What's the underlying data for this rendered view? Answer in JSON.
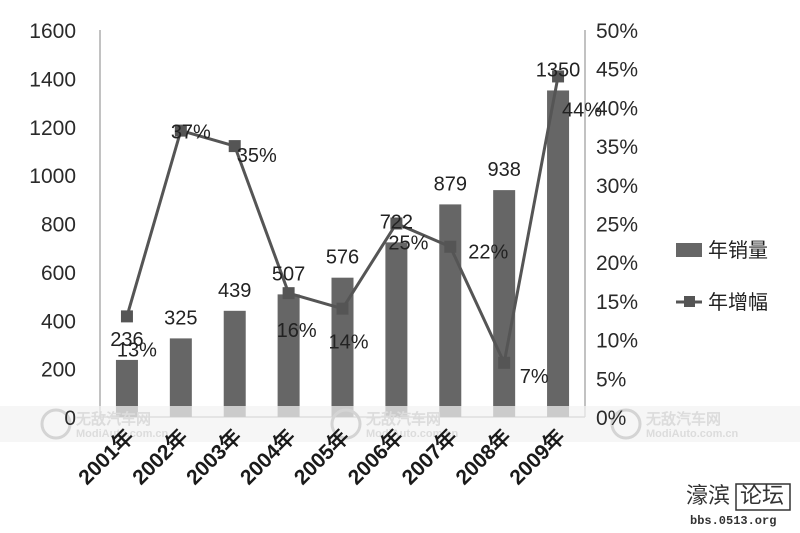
{
  "chart_data": {
    "type": "bar",
    "categories": [
      "2001年",
      "2002年",
      "2003年",
      "2004年",
      "2005年",
      "2006年",
      "2007年",
      "2008年",
      "2009年"
    ],
    "series": [
      {
        "name": "年销量",
        "type": "bar",
        "axis": "left",
        "values": [
          236,
          325,
          439,
          507,
          576,
          722,
          879,
          938,
          1350
        ]
      },
      {
        "name": "年增幅",
        "type": "line",
        "axis": "right",
        "values": [
          13,
          37,
          35,
          16,
          14,
          25,
          22,
          7,
          44
        ]
      }
    ],
    "bar_labels": [
      "236",
      "325",
      "439",
      "507",
      "576",
      "722",
      "879",
      "938",
      "1350"
    ],
    "line_labels": [
      "13%",
      "37%",
      "35%",
      "16%",
      "14%",
      "25%",
      "22%",
      "7%",
      "44%"
    ],
    "ylim": [
      0,
      1600
    ],
    "y_ticks": [
      "0",
      "200",
      "400",
      "600",
      "800",
      "1000",
      "1200",
      "1400",
      "1600"
    ],
    "y2lim": [
      0,
      50
    ],
    "y2_ticks": [
      "0%",
      "5%",
      "10%",
      "15%",
      "20%",
      "25%",
      "30%",
      "35%",
      "40%",
      "45%",
      "50%"
    ],
    "title": "",
    "xlabel": "",
    "ylabel": "",
    "grid": false,
    "legend": "right",
    "colors": {
      "bar": "#666666",
      "line": "#555555",
      "marker": "#555555"
    }
  },
  "watermark": {
    "text": "无敌汽车网",
    "url": "ModiAuto.com.cn"
  },
  "logo": {
    "chinese_a": "濠滨",
    "chinese_b": "论坛",
    "url": "bbs.0513.org"
  }
}
